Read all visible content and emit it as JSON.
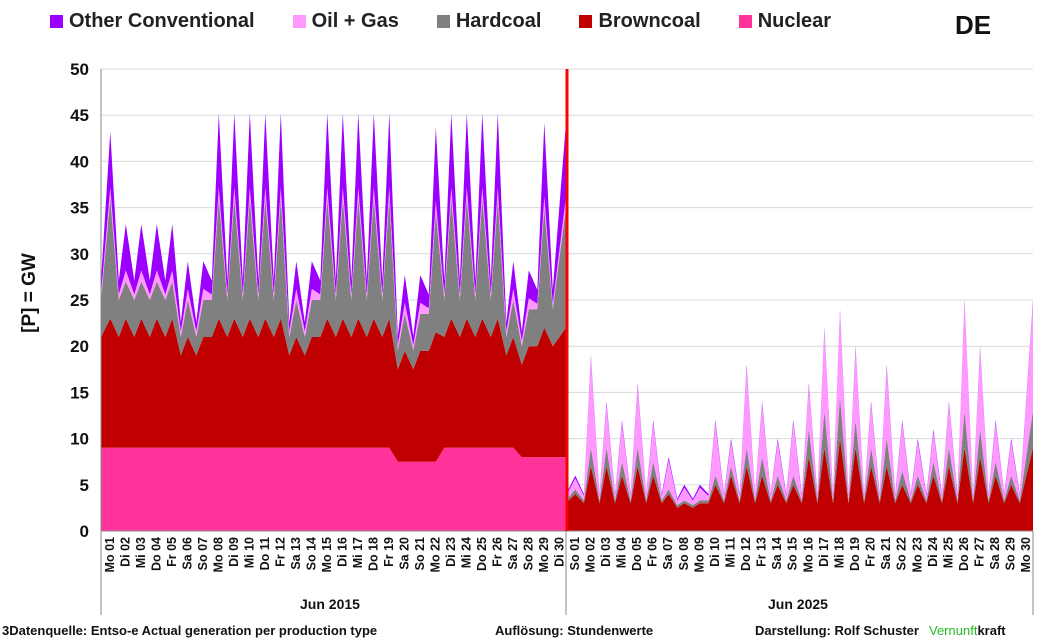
{
  "legend": [
    {
      "name": "Other Conventional",
      "color": "#9b00ff"
    },
    {
      "name": "Oil + Gas",
      "color": "#ff99ff"
    },
    {
      "name": "Hardcoal",
      "color": "#808080"
    },
    {
      "name": "Browncoal",
      "color": "#c00000"
    },
    {
      "name": "Nuclear",
      "color": "#ff3399"
    }
  ],
  "country": "DE",
  "footer": {
    "source": "3Datenquelle: Entso-e  Actual generation per production type",
    "resolution": "Auflösung: Stundenwerte",
    "author": "Darstellung:  Rolf Schuster",
    "brand_green": "Vernunft",
    "brand_black": "kraft",
    "brand_color": "#22bb22"
  },
  "chart_data": {
    "type": "area",
    "stacked": true,
    "title": "DE",
    "ylabel": "[P] =  GW",
    "ylim": [
      0,
      50
    ],
    "yticks": [
      0,
      5,
      10,
      15,
      20,
      25,
      30,
      35,
      40,
      45,
      50
    ],
    "grid": true,
    "legend_position": "top",
    "stack_order": [
      "Nuclear",
      "Browncoal",
      "Hardcoal",
      "Oil + Gas",
      "Other Conventional"
    ],
    "divider_color": "#ff0000",
    "periods": [
      {
        "label": "Jun 2015",
        "days": [
          "Mo 01",
          "Di 02",
          "Mi 03",
          "Do 04",
          "Fr 05",
          "Sa 06",
          "So 07",
          "Mo 08",
          "Di 09",
          "Mi 10",
          "Do 11",
          "Fr 12",
          "Sa 13",
          "So 14",
          "Mo 15",
          "Di 16",
          "Mi 17",
          "Do 18",
          "Fr 19",
          "Sa 20",
          "So 21",
          "Mo 22",
          "Di 23",
          "Mi 24",
          "Do 25",
          "Fr 26",
          "Sa 27",
          "So 28",
          "Mo 29",
          "Di 30"
        ],
        "series": {
          "Nuclear": {
            "night": [
              9,
              9,
              9,
              9,
              9,
              9,
              9,
              9,
              9,
              9,
              9,
              9,
              9,
              9,
              9,
              9,
              9,
              9,
              9,
              7.5,
              7.5,
              7.5,
              9,
              9,
              9,
              9,
              9,
              8,
              8,
              8
            ],
            "peak": [
              9,
              9,
              9,
              9,
              9,
              9,
              9,
              9,
              9,
              9,
              9,
              9,
              9,
              9,
              9,
              9,
              9,
              9,
              9,
              7.5,
              7.5,
              7.5,
              9,
              9,
              9,
              9,
              9,
              8,
              8,
              8
            ]
          },
          "Browncoal": {
            "night": [
              12,
              12,
              12,
              12,
              12,
              10,
              10,
              12,
              12,
              12,
              12,
              12,
              10,
              10,
              12,
              12,
              12,
              12,
              12,
              10,
              10,
              12,
              12,
              12,
              12,
              12,
              10,
              10,
              12,
              12
            ],
            "peak": [
              14,
              14,
              14,
              14,
              14,
              12,
              12,
              14,
              14,
              14,
              14,
              14,
              12,
              12,
              14,
              14,
              14,
              14,
              14,
              12,
              12,
              14,
              14,
              14,
              14,
              14,
              12,
              12,
              14,
              14
            ]
          },
          "Hardcoal": {
            "night": [
              4,
              4,
              4,
              4,
              4,
              2,
              2,
              4,
              4,
              4,
              4,
              4,
              2,
              2,
              4,
              4,
              4,
              4,
              4,
              2,
              2,
              4,
              4,
              4,
              4,
              4,
              2,
              2,
              4,
              4
            ],
            "peak": [
              13,
              4,
              4,
              4,
              4,
              4,
              4,
              13,
              13,
              13,
              13,
              13,
              4,
              4,
              13,
              13,
              13,
              13,
              13,
              4,
              4,
              13,
              13,
              13,
              13,
              13,
              4,
              4,
              13,
              13
            ]
          },
          "Oil + Gas": {
            "night": [
              0.6,
              0.6,
              0.6,
              0.6,
              0.6,
              0.6,
              0.6,
              0.6,
              0.6,
              0.6,
              0.6,
              0.6,
              0.6,
              0.6,
              0.6,
              0.6,
              0.6,
              0.6,
              0.6,
              0.6,
              0.6,
              0.6,
              0.6,
              0.6,
              0.6,
              0.6,
              0.6,
              0.6,
              0.6,
              0.6
            ],
            "peak": [
              1.2,
              1.2,
              1.2,
              1.2,
              1.2,
              1.2,
              1.2,
              1.2,
              1.2,
              1.2,
              1.2,
              1.2,
              1.2,
              1.2,
              1.2,
              1.2,
              1.2,
              1.2,
              1.2,
              1.2,
              1.2,
              1.2,
              1.2,
              1.2,
              1.2,
              1.2,
              1.2,
              1.2,
              1.2,
              1.2
            ]
          },
          "Other Conventional": {
            "night": [
              1.5,
              1.5,
              1.5,
              1.5,
              1.5,
              1,
              1,
              1.5,
              1.5,
              1.5,
              1.5,
              1.5,
              1,
              1,
              1.5,
              1.5,
              1.5,
              1.5,
              1.5,
              1,
              1,
              1.5,
              1.5,
              1.5,
              1.5,
              1.5,
              1,
              1,
              1.5,
              1.5
            ],
            "peak": [
              6,
              5,
              5,
              5,
              5,
              3,
              3,
              8,
              8,
              8,
              8,
              8,
              3,
              3,
              8,
              8,
              8,
              8,
              8,
              3,
              3,
              8,
              8,
              8,
              8,
              8,
              3,
              3,
              8,
              8
            ]
          }
        }
      },
      {
        "label": "Jun 2025",
        "days": [
          "So 01",
          "Mo 02",
          "Di 03",
          "Mi 04",
          "Do 05",
          "Fr 06",
          "Sa 07",
          "So 08",
          "Mo 09",
          "Di 10",
          "Mi 11",
          "Do 12",
          "Fr 13",
          "Sa 14",
          "So 15",
          "Mo 16",
          "Di 17",
          "Mi 18",
          "Do 19",
          "Fr 20",
          "Sa 21",
          "So 22",
          "Mo 23",
          "Di 24",
          "Mi 25",
          "Do 26",
          "Fr 27",
          "Sa 28",
          "So 29",
          "Mo 30"
        ],
        "series": {
          "Nuclear": {
            "night": [
              0,
              0,
              0,
              0,
              0,
              0,
              0,
              0,
              0,
              0,
              0,
              0,
              0,
              0,
              0,
              0,
              0,
              0,
              0,
              0,
              0,
              0,
              0,
              0,
              0,
              0,
              0,
              0,
              0,
              0
            ],
            "peak": [
              0,
              0,
              0,
              0,
              0,
              0,
              0,
              0,
              0,
              0,
              0,
              0,
              0,
              0,
              0,
              0,
              0,
              0,
              0,
              0,
              0,
              0,
              0,
              0,
              0,
              0,
              0,
              0,
              0,
              0
            ]
          },
          "Browncoal": {
            "night": [
              3,
              3,
              3,
              3,
              3,
              3,
              3,
              2.5,
              2.5,
              3,
              3,
              3,
              3,
              3,
              3,
              3,
              3,
              3,
              3,
              3,
              3,
              3,
              3,
              3,
              3,
              3,
              3,
              3,
              3,
              3
            ],
            "peak": [
              4,
              7,
              7,
              6,
              7,
              6,
              4,
              3,
              3,
              5,
              6,
              7,
              6,
              5,
              5,
              8,
              9,
              10,
              9,
              7,
              7,
              5,
              5,
              6,
              7,
              9,
              8,
              6,
              5,
              9
            ]
          },
          "Hardcoal": {
            "night": [
              0.3,
              0.3,
              0.3,
              0.3,
              0.3,
              0.3,
              0.3,
              0.3,
              0.3,
              0.3,
              0.3,
              0.3,
              0.3,
              0.3,
              0.3,
              0.3,
              0.3,
              0.3,
              0.3,
              0.3,
              0.3,
              0.3,
              0.3,
              0.3,
              0.3,
              0.3,
              0.3,
              0.3,
              0.3,
              0.3
            ],
            "peak": [
              0.5,
              2,
              2,
              1.5,
              2,
              1.5,
              0.5,
              0.3,
              0.3,
              1,
              1,
              2,
              2,
              1,
              1,
              3,
              4,
              4.5,
              3,
              2,
              3,
              1.5,
              1,
              1.5,
              2,
              4,
              3,
              1.5,
              1,
              4
            ]
          },
          "Oil + Gas": {
            "night": [
              0.5,
              0.5,
              0.5,
              0.5,
              0.5,
              0.5,
              0.5,
              0.5,
              0.5,
              0.5,
              0.5,
              0.5,
              0.5,
              0.5,
              0.5,
              0.5,
              0.5,
              0.5,
              0.5,
              0.5,
              0.5,
              0.5,
              0.5,
              0.5,
              0.5,
              0.5,
              0.5,
              0.5,
              0.5,
              0.5
            ],
            "peak": [
              1.2,
              9.7,
              4.7,
              4.2,
              6.7,
              4.2,
              3.2,
              1.4,
              1.4,
              5.7,
              2.7,
              8.7,
              5.7,
              3.7,
              5.7,
              4.7,
              8.7,
              9.2,
              7.7,
              4.7,
              7.7,
              5.2,
              3.7,
              3.2,
              4.7,
              11.7,
              8.7,
              4.2,
              3.7,
              11.7
            ]
          },
          "Other Conventional": {
            "night": [
              0.2,
              0.2,
              0.2,
              0.2,
              0.2,
              0.2,
              0.2,
              0.2,
              0.2,
              0.2,
              0.2,
              0.2,
              0.2,
              0.2,
              0.2,
              0.2,
              0.2,
              0.2,
              0.2,
              0.2,
              0.2,
              0.2,
              0.2,
              0.2,
              0.2,
              0.2,
              0.2,
              0.2,
              0.2,
              0.2
            ],
            "peak": [
              0.3,
              0.3,
              0.3,
              0.3,
              0.3,
              0.3,
              0.3,
              0.3,
              0.3,
              0.3,
              0.3,
              0.3,
              0.3,
              0.3,
              0.3,
              0.3,
              0.3,
              0.3,
              0.3,
              0.3,
              0.3,
              0.3,
              0.3,
              0.3,
              0.3,
              0.3,
              0.3,
              0.3,
              0.3,
              0.3
            ]
          }
        }
      }
    ]
  }
}
